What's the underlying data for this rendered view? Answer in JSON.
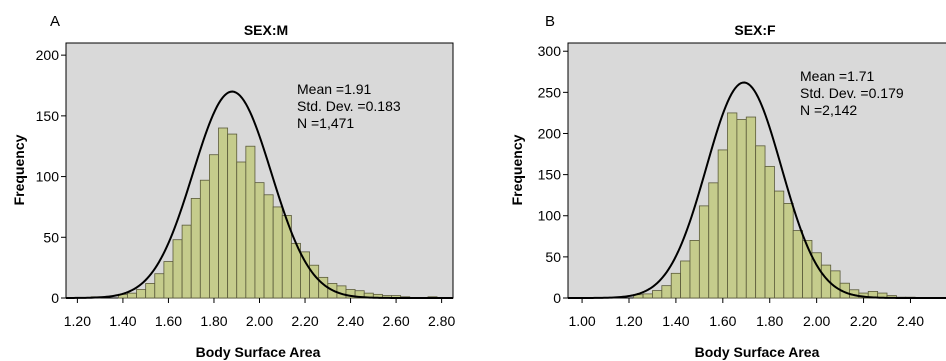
{
  "chart_data": [
    {
      "type": "bar",
      "panel_label": "A",
      "title": "SEX:M",
      "xlabel": "Body Surface Area",
      "ylabel": "Frequency",
      "xlim": [
        1.15,
        2.85
      ],
      "ylim": [
        0,
        210
      ],
      "x_ticks": [
        "1.20",
        "1.40",
        "1.60",
        "1.80",
        "2.00",
        "2.20",
        "2.40",
        "2.60",
        "2.80"
      ],
      "y_ticks": [
        "0",
        "50",
        "100",
        "150",
        "200"
      ],
      "bin_width": 0.04,
      "bin_starts": [
        1.22,
        1.26,
        1.3,
        1.34,
        1.38,
        1.42,
        1.46,
        1.5,
        1.54,
        1.58,
        1.62,
        1.66,
        1.7,
        1.74,
        1.78,
        1.82,
        1.86,
        1.9,
        1.94,
        1.98,
        2.02,
        2.06,
        2.1,
        2.14,
        2.18,
        2.22,
        2.26,
        2.3,
        2.34,
        2.38,
        2.42,
        2.46,
        2.5,
        2.54,
        2.58,
        2.62,
        2.66,
        2.7,
        2.74,
        2.78
      ],
      "values": [
        0,
        1,
        0,
        0,
        3,
        4,
        7,
        12,
        20,
        30,
        48,
        60,
        82,
        97,
        118,
        140,
        135,
        112,
        125,
        95,
        85,
        75,
        68,
        45,
        38,
        27,
        17,
        12,
        10,
        7,
        6,
        4,
        3,
        2,
        2,
        1,
        0,
        0,
        1,
        0
      ],
      "legend_text": {
        "mean": "Mean =1.91",
        "sd": "Std. Dev. =0.183",
        "n": "N =1,471"
      },
      "normal_curve": {
        "mean": 1.88,
        "sd": 0.172,
        "peak": 170
      },
      "grid": false,
      "colors": {
        "bars": "#c5cc8c",
        "bar_edge": "#5a5a3a",
        "plot_bg": "#d9d9d9",
        "curve": "#000000"
      }
    },
    {
      "type": "bar",
      "panel_label": "B",
      "title": "SEX:F",
      "xlabel": "Body Surface Area",
      "ylabel": "Frequency",
      "xlim": [
        0.94,
        2.56
      ],
      "ylim": [
        0,
        310
      ],
      "x_ticks": [
        "1.00",
        "1.20",
        "1.40",
        "1.60",
        "1.80",
        "2.00",
        "2.20",
        "2.40"
      ],
      "y_ticks": [
        "0",
        "50",
        "100",
        "150",
        "200",
        "250",
        "300"
      ],
      "bin_width": 0.04,
      "bin_starts": [
        1.22,
        1.26,
        1.3,
        1.34,
        1.38,
        1.42,
        1.46,
        1.5,
        1.54,
        1.58,
        1.62,
        1.66,
        1.7,
        1.74,
        1.78,
        1.82,
        1.86,
        1.9,
        1.94,
        1.98,
        2.02,
        2.06,
        2.1,
        2.14,
        2.18,
        2.22,
        2.26,
        2.3,
        2.34,
        2.38
      ],
      "values": [
        4,
        5,
        9,
        15,
        30,
        45,
        70,
        112,
        140,
        180,
        225,
        217,
        220,
        185,
        160,
        130,
        115,
        82,
        70,
        55,
        40,
        33,
        18,
        10,
        6,
        8,
        6,
        3,
        1,
        1
      ],
      "legend_text": {
        "mean": "Mean =1.71",
        "sd": "Std. Dev. =0.179",
        "n": "N =2,142"
      },
      "normal_curve": {
        "mean": 1.69,
        "sd": 0.16,
        "peak": 262
      },
      "grid": false,
      "colors": {
        "bars": "#c5cc8c",
        "bar_edge": "#5a5a3a",
        "plot_bg": "#d9d9d9",
        "curve": "#000000"
      }
    }
  ]
}
